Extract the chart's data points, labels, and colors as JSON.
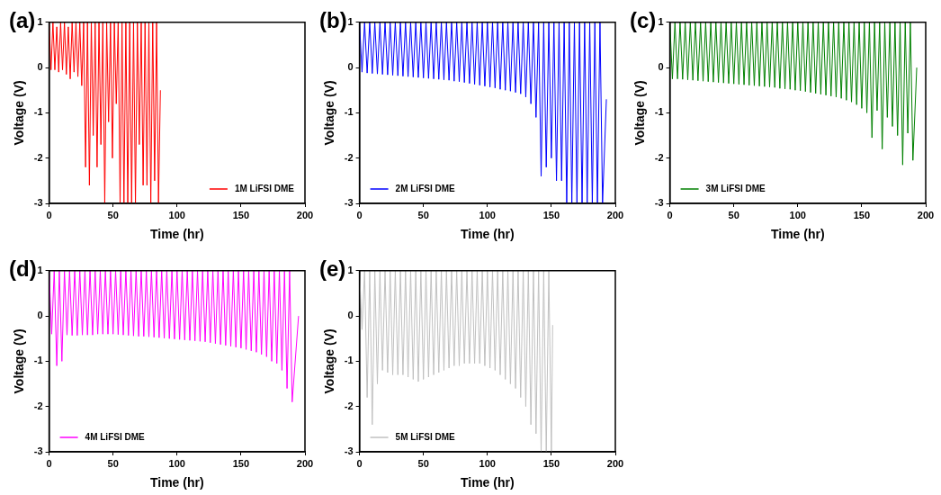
{
  "chart_data": [
    {
      "type": "line",
      "title": "(a)",
      "xlabel": "Time (hr)",
      "ylabel": "Voltage (V)",
      "xlim": [
        0,
        200
      ],
      "xticks": [
        0,
        50,
        100,
        150,
        200
      ],
      "ylim": [
        -3,
        1
      ],
      "yticks": [
        -3,
        -2,
        -1,
        0,
        1
      ],
      "legend": "bottom right",
      "series": [
        {
          "name": "1M LiFSI DME",
          "color": "#ff0000",
          "x": [
            0,
            1.5,
            3,
            4.5,
            6,
            7.5,
            9,
            10.5,
            12,
            13.5,
            15,
            16.5,
            18,
            19.5,
            21,
            22.5,
            24,
            25.5,
            27,
            28.5,
            30,
            31.5,
            33,
            34.5,
            36,
            37.5,
            39,
            40.5,
            42,
            43.5,
            45,
            46.5,
            48,
            49.5,
            51,
            52.5,
            54,
            55.5,
            57,
            58.5,
            60,
            61.5,
            63,
            64.5,
            66,
            67.5,
            69,
            70.5,
            72,
            73.5,
            75,
            76.5,
            78,
            79.5,
            81,
            82.5,
            84,
            85.5,
            87
          ],
          "values": [
            1,
            -0.05,
            1,
            -0.05,
            0.9,
            -0.1,
            1,
            -0.05,
            1,
            -0.15,
            0.9,
            -0.25,
            1,
            -0.1,
            1,
            -0.2,
            1,
            -0.4,
            1,
            -2.2,
            1,
            -2.6,
            1,
            -1.5,
            1,
            -2.2,
            1,
            -1.7,
            1,
            -3,
            1,
            -1.2,
            1,
            -2,
            1,
            -0.8,
            1,
            -3,
            1,
            -3,
            1,
            -3,
            1,
            -3,
            1,
            -3,
            1,
            -1.7,
            1,
            -2.6,
            1,
            -2.6,
            1,
            -3,
            1,
            -2.5,
            1,
            -3,
            -0.5
          ]
        }
      ]
    },
    {
      "type": "line",
      "title": "(b)",
      "xlabel": "Time (hr)",
      "ylabel": "Voltage (V)",
      "xlim": [
        0,
        200
      ],
      "xticks": [
        0,
        50,
        100,
        150,
        200
      ],
      "ylim": [
        -3,
        1
      ],
      "yticks": [
        -3,
        -2,
        -1,
        0,
        1
      ],
      "legend": "bottom left",
      "series": [
        {
          "name": "2M LiFSI DME",
          "color": "#0000ff",
          "x": [
            0,
            2,
            4,
            6,
            8,
            10,
            12,
            14,
            16,
            18,
            20,
            22,
            24,
            26,
            28,
            30,
            32,
            34,
            36,
            38,
            40,
            42,
            44,
            46,
            48,
            50,
            52,
            54,
            56,
            58,
            60,
            62,
            64,
            66,
            68,
            70,
            72,
            74,
            76,
            78,
            80,
            82,
            84,
            86,
            88,
            90,
            92,
            94,
            96,
            98,
            100,
            102,
            104,
            106,
            108,
            110,
            112,
            114,
            116,
            118,
            120,
            122,
            124,
            126,
            128,
            130,
            132,
            134,
            136,
            138,
            140,
            142,
            144,
            146,
            148,
            150,
            152,
            154,
            156,
            158,
            160,
            162,
            164,
            166,
            168,
            170,
            172,
            174,
            176,
            178,
            180,
            182,
            184,
            186,
            188,
            190,
            193
          ],
          "values": [
            1,
            -0.1,
            1,
            -0.12,
            1,
            -0.13,
            1,
            -0.14,
            1,
            -0.15,
            1,
            -0.16,
            1,
            -0.17,
            1,
            -0.18,
            1,
            -0.19,
            1,
            -0.2,
            1,
            -0.21,
            1,
            -0.22,
            1,
            -0.23,
            1,
            -0.24,
            1,
            -0.25,
            1,
            -0.26,
            1,
            -0.27,
            1,
            -0.28,
            1,
            -0.3,
            1,
            -0.31,
            1,
            -0.33,
            1,
            -0.35,
            1,
            -0.37,
            1,
            -0.39,
            1,
            -0.41,
            1,
            -0.43,
            1,
            -0.45,
            1,
            -0.48,
            1,
            -0.5,
            1,
            -0.52,
            1,
            -0.55,
            1,
            -0.58,
            1,
            -0.65,
            1,
            -0.8,
            1,
            -1.1,
            1,
            -2.4,
            1,
            -2.2,
            1,
            -2,
            1,
            -2.5,
            1,
            -2.5,
            1,
            -3,
            1,
            -3,
            1,
            -3,
            1,
            -3,
            1,
            -3,
            1,
            -3,
            1,
            -3,
            1,
            -3,
            -0.7
          ]
        }
      ]
    },
    {
      "type": "line",
      "title": "(c)",
      "xlabel": "Time (hr)",
      "ylabel": "Voltage (V)",
      "xlim": [
        0,
        200
      ],
      "xticks": [
        0,
        50,
        100,
        150,
        200
      ],
      "ylim": [
        -3,
        1
      ],
      "yticks": [
        -3,
        -2,
        -1,
        0,
        1
      ],
      "legend": "bottom left",
      "series": [
        {
          "name": "3M LiFSI DME",
          "color": "#008000",
          "x": [
            0,
            2,
            4,
            6,
            8,
            10,
            12,
            14,
            16,
            18,
            20,
            22,
            24,
            26,
            28,
            30,
            32,
            34,
            36,
            38,
            40,
            42,
            44,
            46,
            48,
            50,
            52,
            54,
            56,
            58,
            60,
            62,
            64,
            66,
            68,
            70,
            72,
            74,
            76,
            78,
            80,
            82,
            84,
            86,
            88,
            90,
            92,
            94,
            96,
            98,
            100,
            102,
            104,
            106,
            108,
            110,
            112,
            114,
            116,
            118,
            120,
            122,
            124,
            126,
            128,
            130,
            132,
            134,
            136,
            138,
            140,
            142,
            144,
            146,
            148,
            150,
            152,
            154,
            156,
            158,
            160,
            162,
            164,
            166,
            168,
            170,
            172,
            174,
            176,
            178,
            180,
            182,
            184,
            186,
            188,
            190,
            193
          ],
          "values": [
            1,
            -0.25,
            1,
            -0.25,
            1,
            -0.26,
            1,
            -0.27,
            1,
            -0.28,
            1,
            -0.29,
            1,
            -0.3,
            1,
            -0.31,
            1,
            -0.32,
            1,
            -0.33,
            1,
            -0.34,
            1,
            -0.35,
            1,
            -0.36,
            1,
            -0.37,
            1,
            -0.38,
            1,
            -0.39,
            1,
            -0.4,
            1,
            -0.41,
            1,
            -0.42,
            1,
            -0.43,
            1,
            -0.44,
            1,
            -0.46,
            1,
            -0.47,
            1,
            -0.48,
            1,
            -0.5,
            1,
            -0.51,
            1,
            -0.53,
            1,
            -0.55,
            1,
            -0.57,
            1,
            -0.59,
            1,
            -0.61,
            1,
            -0.63,
            1,
            -0.65,
            1,
            -0.68,
            1,
            -0.72,
            1,
            -0.76,
            1,
            -0.82,
            1,
            -0.9,
            1,
            -1,
            1,
            -1.55,
            1,
            -0.95,
            1,
            -1.8,
            1,
            -1.1,
            1,
            -1.3,
            1,
            -1.5,
            1,
            -2.15,
            1,
            -1.45,
            1,
            -2.05,
            0
          ]
        }
      ]
    },
    {
      "type": "line",
      "title": "(d)",
      "xlabel": "Time (hr)",
      "ylabel": "Voltage (V)",
      "xlim": [
        0,
        200
      ],
      "xticks": [
        0,
        50,
        100,
        150,
        200
      ],
      "ylim": [
        -3,
        1
      ],
      "yticks": [
        -3,
        -2,
        -1,
        0,
        1
      ],
      "legend": "bottom left",
      "series": [
        {
          "name": "4M LiFSI DME",
          "color": "#ff00ff",
          "x": [
            0,
            2,
            4,
            6,
            8,
            10,
            12,
            14,
            16,
            18,
            20,
            22,
            24,
            26,
            28,
            30,
            32,
            34,
            36,
            38,
            40,
            42,
            44,
            46,
            48,
            50,
            52,
            54,
            56,
            58,
            60,
            62,
            64,
            66,
            68,
            70,
            72,
            74,
            76,
            78,
            80,
            82,
            84,
            86,
            88,
            90,
            92,
            94,
            96,
            98,
            100,
            102,
            104,
            106,
            108,
            110,
            112,
            114,
            116,
            118,
            120,
            122,
            124,
            126,
            128,
            130,
            132,
            134,
            136,
            138,
            140,
            142,
            144,
            146,
            148,
            150,
            152,
            154,
            156,
            158,
            160,
            162,
            164,
            166,
            168,
            170,
            172,
            174,
            176,
            178,
            180,
            182,
            184,
            186,
            188,
            190,
            195
          ],
          "values": [
            1,
            -0.4,
            1,
            -1.1,
            1,
            -1,
            1,
            -0.42,
            1,
            -0.43,
            1,
            -0.43,
            1,
            -0.42,
            1,
            -0.42,
            1,
            -0.42,
            1,
            -0.4,
            1,
            -0.4,
            1,
            -0.4,
            1,
            -0.4,
            1,
            -0.41,
            1,
            -0.42,
            1,
            -0.43,
            1,
            -0.44,
            1,
            -0.45,
            1,
            -0.45,
            1,
            -0.46,
            1,
            -0.47,
            1,
            -0.48,
            1,
            -0.49,
            1,
            -0.5,
            1,
            -0.51,
            1,
            -0.52,
            1,
            -0.53,
            1,
            -0.54,
            1,
            -0.55,
            1,
            -0.56,
            1,
            -0.57,
            1,
            -0.59,
            1,
            -0.61,
            1,
            -0.63,
            1,
            -0.65,
            1,
            -0.67,
            1,
            -0.69,
            1,
            -0.71,
            1,
            -0.74,
            1,
            -0.77,
            1,
            -0.8,
            1,
            -0.85,
            1,
            -0.9,
            1,
            -1,
            1,
            -1.05,
            1,
            -1.2,
            1,
            -1.6,
            1,
            -1.9,
            0
          ]
        }
      ]
    },
    {
      "type": "line",
      "title": "(e)",
      "xlabel": "Time (hr)",
      "ylabel": "Voltage (V)",
      "xlim": [
        0,
        200
      ],
      "xticks": [
        0,
        50,
        100,
        150,
        200
      ],
      "ylim": [
        -3,
        1
      ],
      "yticks": [
        -3,
        -2,
        -1,
        0,
        1
      ],
      "legend": "bottom left",
      "series": [
        {
          "name": "5M LiFSI DME",
          "color": "#c0c0c0",
          "x": [
            0,
            2,
            4,
            6,
            8,
            10,
            12,
            14,
            16,
            18,
            20,
            22,
            24,
            26,
            28,
            30,
            32,
            34,
            36,
            38,
            40,
            42,
            44,
            46,
            48,
            50,
            52,
            54,
            56,
            58,
            60,
            62,
            64,
            66,
            68,
            70,
            72,
            74,
            76,
            78,
            80,
            82,
            84,
            86,
            88,
            90,
            92,
            94,
            96,
            98,
            100,
            102,
            104,
            106,
            108,
            110,
            112,
            114,
            116,
            118,
            120,
            122,
            124,
            126,
            128,
            130,
            132,
            134,
            136,
            138,
            140,
            142,
            144,
            146,
            148,
            150,
            151
          ],
          "values": [
            1,
            -0.3,
            1,
            -1.8,
            1,
            -2.4,
            1,
            -1.5,
            1,
            -1.2,
            1,
            -1.25,
            1,
            -1.3,
            1,
            -1.3,
            1,
            -1.3,
            1,
            -1.35,
            1,
            -1.4,
            1,
            -1.45,
            1,
            -1.4,
            1,
            -1.35,
            1,
            -1.3,
            1,
            -1.25,
            1,
            -1.2,
            1,
            -1.15,
            1,
            -1.1,
            1,
            -1.1,
            1,
            -1.05,
            1,
            -1.05,
            1,
            -1.05,
            1,
            -1.05,
            1,
            -1.1,
            1,
            -1.15,
            1,
            -1.2,
            1,
            -1.3,
            1,
            -1.4,
            1,
            -1.5,
            1,
            -1.6,
            1,
            -1.8,
            1,
            -2,
            1,
            -2.4,
            1,
            -2.6,
            1,
            -3,
            1,
            -3,
            1,
            -3,
            -0.2
          ]
        }
      ]
    }
  ]
}
